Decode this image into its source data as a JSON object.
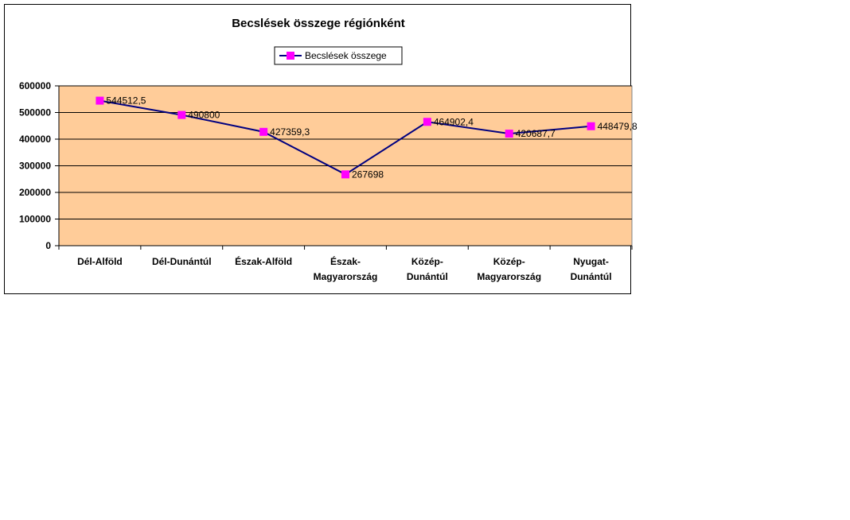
{
  "chart_data": {
    "type": "line",
    "title": "Becslések összege régiónként",
    "categories": [
      [
        "Dél-Alföld"
      ],
      [
        "Dél-Dunántúl"
      ],
      [
        "Észak-Alföld"
      ],
      [
        "Észak-",
        "Magyarország"
      ],
      [
        "Közép-",
        "Dunántúl"
      ],
      [
        "Közép-",
        "Magyarország"
      ],
      [
        "Nyugat-",
        "Dunántúl"
      ]
    ],
    "series": [
      {
        "name": "Becslések összege",
        "values": [
          544512.5,
          490800,
          427359.3,
          267698,
          464902.4,
          420687.7,
          448479.8
        ],
        "labels": [
          "544512,5",
          "490800",
          "427359,3",
          "267698",
          "464902,4",
          "420687,7",
          "448479,8"
        ]
      }
    ],
    "ylim": [
      0,
      600000
    ],
    "yticks": [
      0,
      100000,
      200000,
      300000,
      400000,
      500000,
      600000
    ],
    "grid": true,
    "legend": "top-center",
    "colors": {
      "plot_background": "#FFCC99",
      "line": "#000080",
      "marker": "#FF00FF",
      "gridline": "#000000"
    }
  }
}
